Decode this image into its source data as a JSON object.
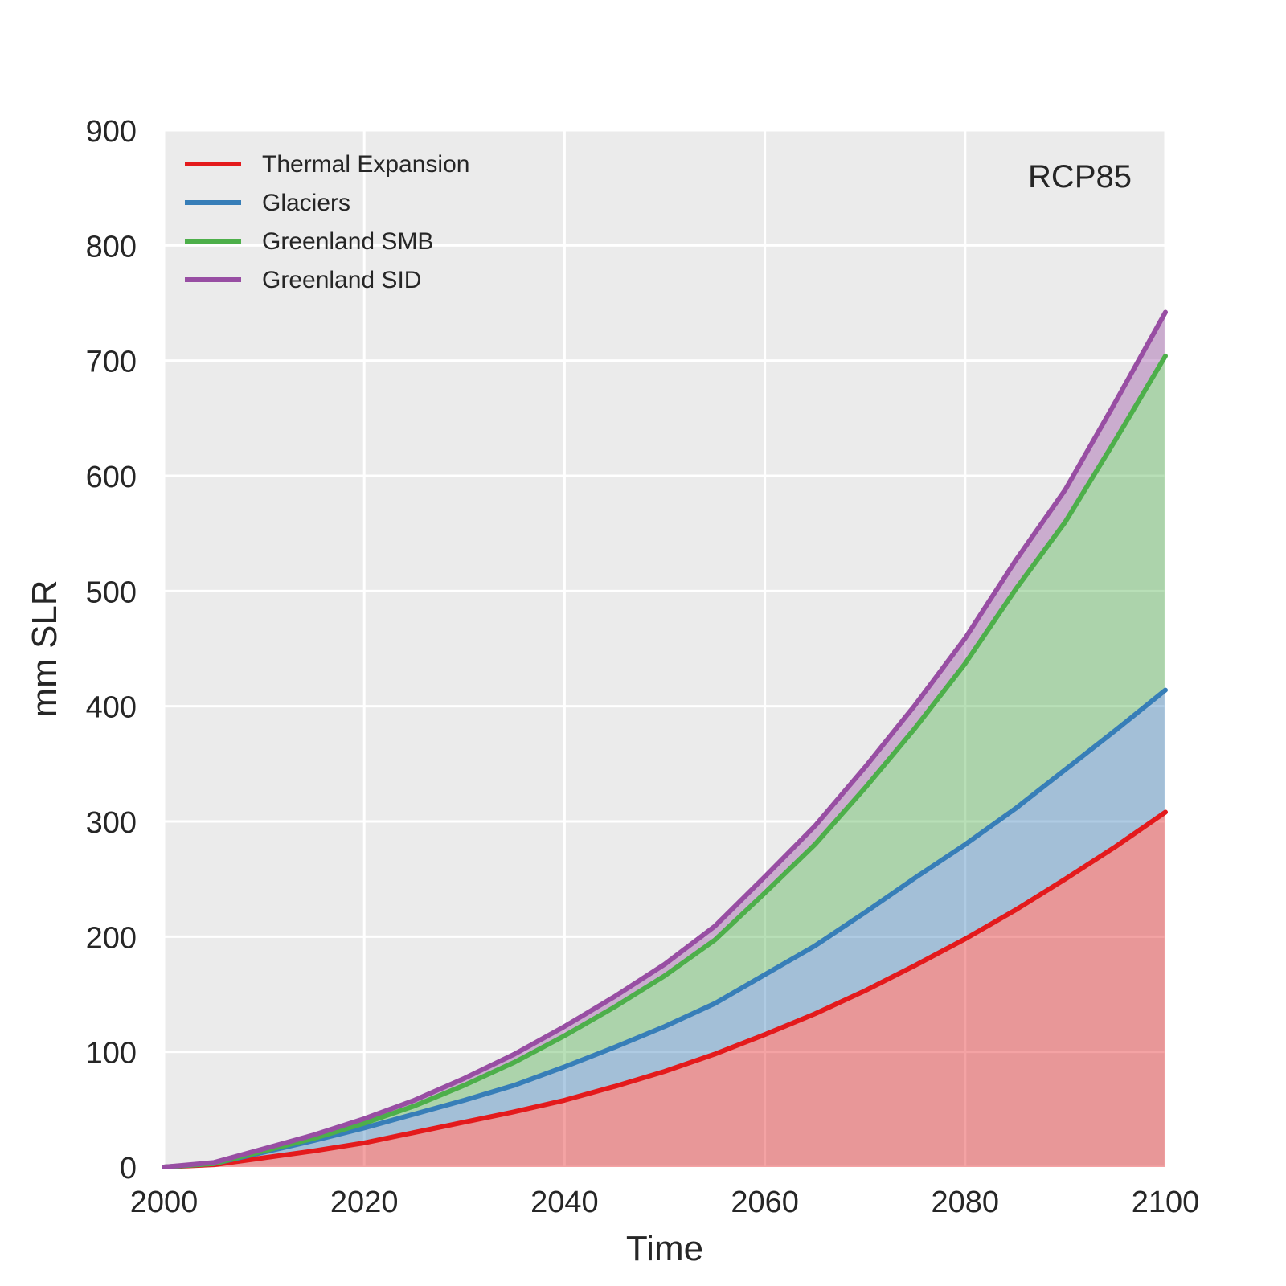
{
  "chart_data": {
    "type": "area",
    "stacked": true,
    "title": "",
    "annotation": "RCP85",
    "xlabel": "Time",
    "ylabel": "mm SLR",
    "xlim": [
      2000,
      2100
    ],
    "ylim": [
      0,
      900
    ],
    "xticks": [
      2000,
      2020,
      2040,
      2060,
      2080,
      2100
    ],
    "yticks": [
      0,
      100,
      200,
      300,
      400,
      500,
      600,
      700,
      800,
      900
    ],
    "grid": true,
    "background": "#EBEBEB",
    "legend_position": "top-left",
    "x": [
      2000,
      2005,
      2010,
      2015,
      2020,
      2025,
      2030,
      2035,
      2040,
      2045,
      2050,
      2055,
      2060,
      2065,
      2070,
      2075,
      2080,
      2085,
      2090,
      2095,
      2100
    ],
    "series": [
      {
        "name": "Thermal Expansion",
        "color": "#E41A1C",
        "values": [
          0,
          2,
          8,
          14,
          21,
          30,
          39,
          48,
          58,
          70,
          83,
          98,
          115,
          133,
          153,
          175,
          198,
          223,
          250,
          278,
          308
        ]
      },
      {
        "name": "Glaciers",
        "color": "#377EB8",
        "values": [
          0,
          1,
          5,
          9,
          13,
          16,
          19,
          23,
          29,
          34,
          39,
          44,
          52,
          59,
          68,
          76,
          82,
          88,
          95,
          101,
          106
        ]
      },
      {
        "name": "Greenland SMB",
        "color": "#4DAF4A",
        "values": [
          0,
          0,
          1,
          2,
          4,
          7,
          13,
          20,
          27,
          35,
          44,
          55,
          71,
          88,
          108,
          130,
          157,
          190,
          215,
          252,
          290
        ]
      },
      {
        "name": "Greenland SID",
        "color": "#984EA3",
        "values": [
          0,
          1,
          2,
          3,
          4,
          5,
          6,
          7,
          8,
          9,
          10,
          12,
          14,
          16,
          18,
          20,
          22,
          25,
          28,
          33,
          38
        ]
      }
    ]
  }
}
